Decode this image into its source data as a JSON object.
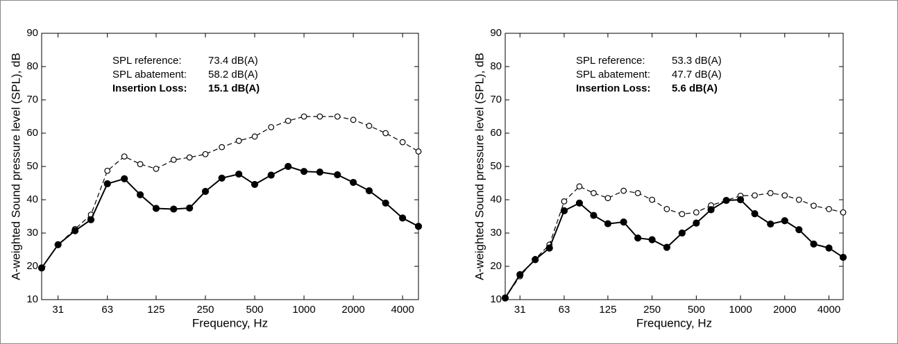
{
  "chart_data": [
    {
      "type": "line",
      "xscale": "log",
      "xlabel": "Frequency, Hz",
      "ylabel": "A-weighted Sound pressure level (SPL), dB",
      "x": [
        25,
        31.5,
        40,
        50,
        63,
        80,
        100,
        125,
        160,
        200,
        250,
        315,
        400,
        500,
        630,
        800,
        1000,
        1250,
        1600,
        2000,
        2500,
        3150,
        4000,
        5000
      ],
      "xlim": [
        25,
        5000
      ],
      "xticks": [
        {
          "value": 31.5,
          "label": "31"
        },
        63,
        125,
        250,
        500,
        1000,
        2000,
        4000
      ],
      "ylim": [
        10,
        90
      ],
      "yticks": [
        10,
        20,
        30,
        40,
        50,
        60,
        70,
        80,
        90
      ],
      "series": [
        {
          "color": "#000000",
          "marker": "open",
          "dashed": true,
          "values": [
            19.5,
            26.5,
            31.2,
            35.5,
            48.7,
            53,
            50.7,
            49.3,
            52,
            52.7,
            53.7,
            55.8,
            57.7,
            59,
            61.8,
            63.7,
            65,
            65,
            65,
            64,
            62.2,
            60,
            57.3,
            54.5
          ]
        },
        {
          "color": "#000000",
          "marker": "filled",
          "dashed": false,
          "values": [
            19.5,
            26.5,
            30.7,
            34,
            44.8,
            46.3,
            41.5,
            37.4,
            37.2,
            37.5,
            42.5,
            46.5,
            47.7,
            44.6,
            47.4,
            50,
            48.5,
            48.3,
            47.5,
            45.2,
            42.7,
            39,
            34.5,
            32
          ]
        }
      ],
      "annotations": [
        {
          "label": "SPL reference:",
          "value": "73.4 dB(A)",
          "bold": false
        },
        {
          "label": "SPL abatement:",
          "value": "58.2 dB(A)",
          "bold": false
        },
        {
          "label": "Insertion Loss:",
          "value": "15.1 dB(A)",
          "bold": true
        }
      ]
    },
    {
      "type": "line",
      "xscale": "log",
      "xlabel": "Frequency, Hz",
      "ylabel": "A-weighted Sound pressure level (SPL), dB",
      "x": [
        25,
        31.5,
        40,
        50,
        63,
        80,
        100,
        125,
        160,
        200,
        250,
        315,
        400,
        500,
        630,
        800,
        1000,
        1250,
        1600,
        2000,
        2500,
        3150,
        4000,
        5000
      ],
      "xlim": [
        25,
        5000
      ],
      "xticks": [
        {
          "value": 31.5,
          "label": "31"
        },
        63,
        125,
        250,
        500,
        1000,
        2000,
        4000
      ],
      "ylim": [
        10,
        90
      ],
      "yticks": [
        10,
        20,
        30,
        40,
        50,
        60,
        70,
        80,
        90
      ],
      "series": [
        {
          "color": "#000000",
          "marker": "open",
          "dashed": true,
          "values": [
            10.5,
            17,
            22.2,
            26.5,
            39.5,
            44,
            42,
            40.5,
            42.7,
            42,
            40,
            37.2,
            35.7,
            36.2,
            38.3,
            39.8,
            41.2,
            41.3,
            42,
            41.3,
            40,
            38.2,
            37.2,
            36.2
          ]
        },
        {
          "color": "#000000",
          "marker": "filled",
          "dashed": false,
          "values": [
            10.5,
            17.5,
            22,
            25.5,
            36.7,
            39,
            35.3,
            32.8,
            33.3,
            28.5,
            28,
            25.7,
            30,
            33,
            37,
            39.8,
            40,
            35.8,
            32.7,
            33.7,
            31,
            26.7,
            25.5,
            22.7
          ]
        }
      ],
      "annotations": [
        {
          "label": "SPL reference:",
          "value": "53.3 dB(A)",
          "bold": false
        },
        {
          "label": "SPL abatement:",
          "value": "47.7 dB(A)",
          "bold": false
        },
        {
          "label": "Insertion Loss:",
          "value": "5.6 dB(A)",
          "bold": true
        }
      ]
    }
  ]
}
